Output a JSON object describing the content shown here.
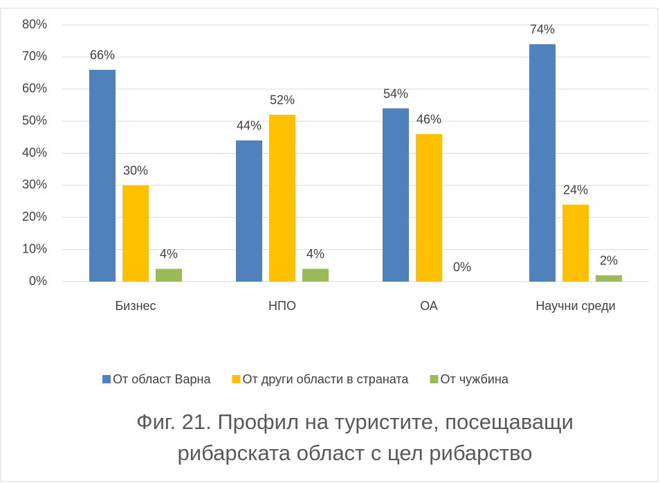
{
  "chart_data": {
    "type": "bar",
    "title": [
      "Фиг. 21. Профил на туристите, посещаващи",
      "рибарската област с цел рибарство"
    ],
    "categories": [
      "Бизнес",
      "НПО",
      "ОА",
      "Научни среди"
    ],
    "series": [
      {
        "name": "От област Варна",
        "color": "#4f81bd",
        "values": [
          66,
          44,
          54,
          74
        ],
        "value_labels": [
          "66%",
          "44%",
          "54%",
          "74%"
        ]
      },
      {
        "name": "От други области в страната",
        "color": "#ffc000",
        "values": [
          30,
          52,
          46,
          24
        ],
        "value_labels": [
          "30%",
          "52%",
          "46%",
          "24%"
        ]
      },
      {
        "name": "От чужбина",
        "color": "#9bbb59",
        "values": [
          4,
          4,
          0,
          2
        ],
        "value_labels": [
          "4%",
          "4%",
          "0%",
          "2%"
        ]
      }
    ],
    "ylim": [
      0,
      80
    ],
    "yticks": [
      {
        "value": 0,
        "label": "0%"
      },
      {
        "value": 10,
        "label": "10%"
      },
      {
        "value": 20,
        "label": "20%"
      },
      {
        "value": 30,
        "label": "30%"
      },
      {
        "value": 40,
        "label": "40%"
      },
      {
        "value": 50,
        "label": "50%"
      },
      {
        "value": 60,
        "label": "60%"
      },
      {
        "value": 70,
        "label": "70%"
      },
      {
        "value": 80,
        "label": "80%"
      }
    ],
    "grid": true,
    "legend": "bottom"
  }
}
